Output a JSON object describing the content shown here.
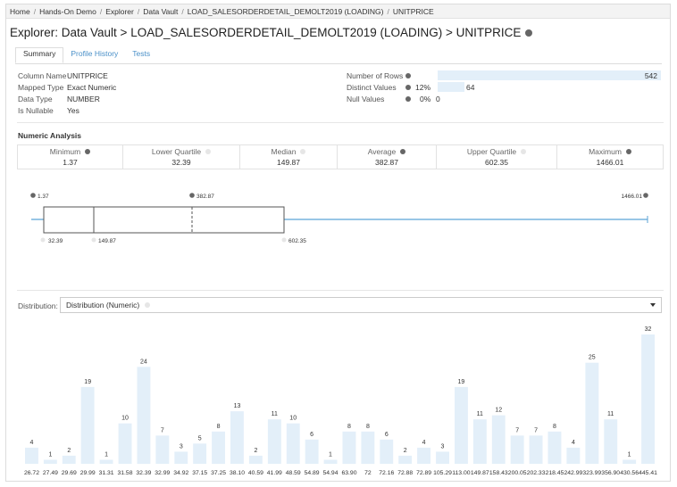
{
  "breadcrumb": [
    "Home",
    "Hands-On Demo",
    "Explorer",
    "Data Vault",
    "LOAD_SALESORDERDETAIL_DEMOLT2019 (LOADING)",
    "UNITPRICE"
  ],
  "page_title": "Explorer: Data Vault > LOAD_SALESORDERDETAIL_DEMOLT2019 (LOADING) > UNITPRICE",
  "tabs": [
    {
      "label": "Summary",
      "active": true
    },
    {
      "label": "Profile History",
      "active": false
    },
    {
      "label": "Tests",
      "active": false
    }
  ],
  "column_info": [
    {
      "label": "Column Name",
      "value": "UNITPRICE"
    },
    {
      "label": "Mapped Type",
      "value": "Exact Numeric"
    },
    {
      "label": "Data Type",
      "value": "NUMBER"
    },
    {
      "label": "Is Nullable",
      "value": "Yes"
    }
  ],
  "row_stats": {
    "number_of_rows": {
      "label": "Number of Rows",
      "value": "542",
      "fraction": 1.0
    },
    "distinct_values": {
      "label": "Distinct Values",
      "percent": "12%",
      "value": "64",
      "fraction": 0.118
    },
    "null_values": {
      "label": "Null Values",
      "percent": "0%",
      "value": "0",
      "fraction": 0
    }
  },
  "numeric_analysis": {
    "title": "Numeric Analysis",
    "stats": [
      {
        "name": "Minimum",
        "value": "1.37",
        "dot": "dark"
      },
      {
        "name": "Lower Quartile",
        "value": "32.39",
        "dot": "light"
      },
      {
        "name": "Median",
        "value": "149.87",
        "dot": "light"
      },
      {
        "name": "Average",
        "value": "382.87",
        "dot": "dark"
      },
      {
        "name": "Upper Quartile",
        "value": "602.35",
        "dot": "light"
      },
      {
        "name": "Maximum",
        "value": "1466.01",
        "dot": "dark"
      }
    ]
  },
  "boxplot": {
    "min": 1.37,
    "q1": 32.39,
    "median": 149.87,
    "mean": 382.87,
    "q3": 602.35,
    "max": 1466.01,
    "labels": {
      "min": "1.37",
      "q1": "32.39",
      "median": "149.87",
      "mean": "382.87",
      "q3": "602.35",
      "max": "1466.01"
    },
    "colors": {
      "whisker": "#5ba3d6",
      "box": "#555555"
    }
  },
  "distribution": {
    "label": "Distribution:",
    "selected": "Distribution (Numeric)"
  },
  "chart_data": {
    "type": "bar",
    "categories": [
      "26.72",
      "27.49",
      "29.69",
      "29.99",
      "31.31",
      "31.58",
      "32.39",
      "32.99",
      "34.92",
      "37.15",
      "37.25",
      "38.10",
      "40.59",
      "41.99",
      "48.59",
      "54.89",
      "54.94",
      "63.90",
      "72",
      "72.16",
      "72.88",
      "72.89",
      "105.29",
      "113.00",
      "149.87",
      "158.43",
      "200.05",
      "202.33",
      "218.45",
      "242.99",
      "323.99",
      "356.90",
      "430.56",
      "445.41"
    ],
    "values": [
      4,
      1,
      2,
      19,
      1,
      10,
      24,
      7,
      3,
      5,
      8,
      13,
      2,
      11,
      10,
      6,
      1,
      8,
      8,
      6,
      2,
      4,
      3,
      19,
      11,
      12,
      7,
      7,
      8,
      4,
      25,
      11,
      1,
      32
    ],
    "bar_color": "#e3eff9",
    "ylim": [
      0,
      32
    ]
  }
}
